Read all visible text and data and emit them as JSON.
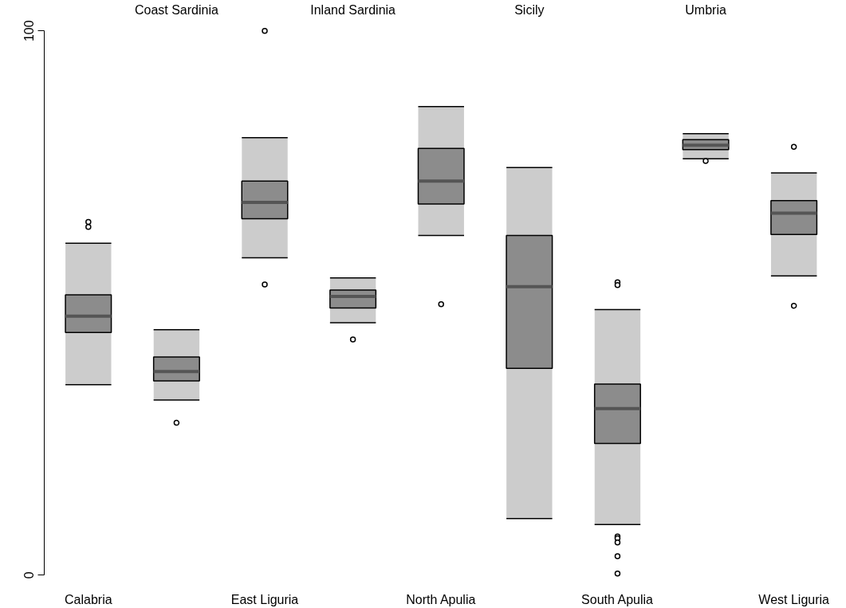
{
  "chart_data": {
    "type": "box",
    "categories": [
      "Calabria",
      "Coast Sardinia",
      "East Liguria",
      "Inland Sardinia",
      "North Apulia",
      "Sicily",
      "South Apulia",
      "Umbria",
      "West Liguria"
    ],
    "ylim": [
      0,
      100
    ],
    "yticks": [
      0,
      100
    ],
    "grid": false,
    "series": [
      {
        "color": "#8c8c8c",
        "boxes": [
          {
            "low": 35.0,
            "q1": 44.6,
            "median": 47.6,
            "q3": 51.5,
            "high": 61.0,
            "outliers": [
              64.9,
              64.0
            ]
          },
          {
            "low": 32.2,
            "q1": 35.7,
            "median": 37.4,
            "q3": 40.1,
            "high": 45.1,
            "outliers": [
              28.0
            ]
          },
          {
            "low": 58.3,
            "q1": 65.5,
            "median": 68.5,
            "q3": 72.4,
            "high": 80.4,
            "outliers": [
              53.4,
              100
            ]
          },
          {
            "low": 46.4,
            "q1": 49.1,
            "median": 51.2,
            "q3": 52.4,
            "high": 54.6,
            "outliers": [
              43.3
            ]
          },
          {
            "low": 62.4,
            "q1": 68.2,
            "median": 72.4,
            "q3": 78.4,
            "high": 86.1,
            "outliers": [
              49.8
            ]
          },
          {
            "low": 10.4,
            "q1": 38.0,
            "median": 53.0,
            "q3": 62.4,
            "high": 74.9
          },
          {
            "low": 9.3,
            "q1": 24.2,
            "median": 30.6,
            "q3": 35.1,
            "high": 48.8,
            "outliers": [
              53.8,
              53.3,
              7.1,
              6.8,
              6.0,
              3.5,
              0.3
            ]
          },
          {
            "low": 76.5,
            "q1": 78.2,
            "median": 79.0,
            "q3": 80.0,
            "high": 81.1,
            "outliers": [
              76.1
            ]
          },
          {
            "low": 55.0,
            "q1": 62.6,
            "median": 66.5,
            "q3": 68.8,
            "high": 73.9,
            "outliers": [
              78.7,
              49.5
            ]
          }
        ]
      }
    ]
  }
}
